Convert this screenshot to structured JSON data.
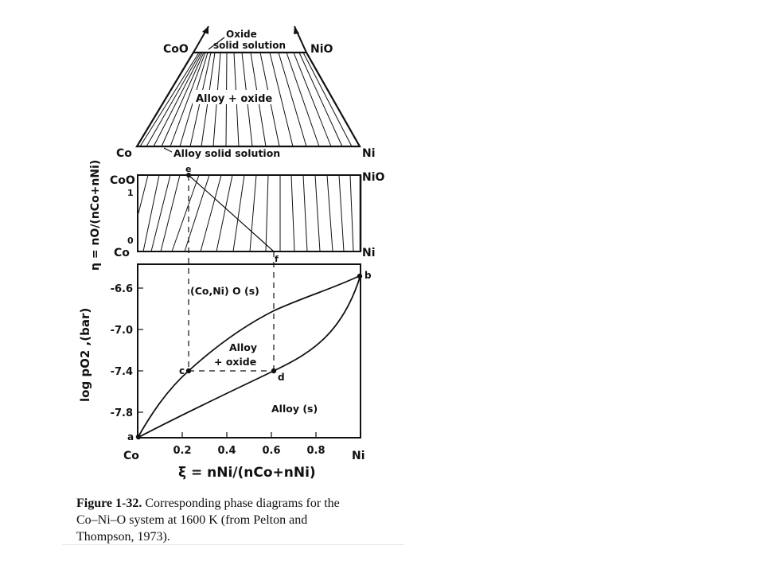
{
  "top_diagram": {
    "left_top": "CoO",
    "right_top": "NiO",
    "left_bottom": "Co",
    "right_bottom": "Ni",
    "oxide_label_1": "Oxide",
    "oxide_label_2": "solid solution",
    "region_label": "Alloy + oxide",
    "alloy_label": "Alloy solid solution"
  },
  "middle_diagram": {
    "y_axis_label": "η = nO/(nCo+nNi)",
    "left_top": "CoO",
    "right_top": "NiO",
    "left_bottom": "Co",
    "right_bottom": "Ni",
    "tick_1": "1",
    "tick_0": "0",
    "point_e": "e",
    "point_f": "f"
  },
  "bottom_diagram": {
    "y_axis_label": "log pO2 ,(bar)",
    "y_ticks": [
      "-6.6",
      "-7.0",
      "-7.4",
      "-7.8"
    ],
    "x_ticks": [
      "0.2",
      "0.4",
      "0.6",
      "0.8"
    ],
    "x_left": "Co",
    "x_right": "Ni",
    "x_axis_label": "ξ = nNi/(nCo+nNi)",
    "region_oxide": "(Co,Ni) O (s)",
    "region_mid_1": "Alloy",
    "region_mid_2": "+ oxide",
    "region_alloy": "Alloy (s)",
    "points": [
      "a",
      "b",
      "c",
      "d"
    ]
  },
  "caption": {
    "figure_no": "Figure 1-32.",
    "line1_rest": "Corresponding phase diagrams for the",
    "line2": "Co–Ni–O system at 1600 K (from Pelton and",
    "line3": "Thompson, 1973)."
  }
}
